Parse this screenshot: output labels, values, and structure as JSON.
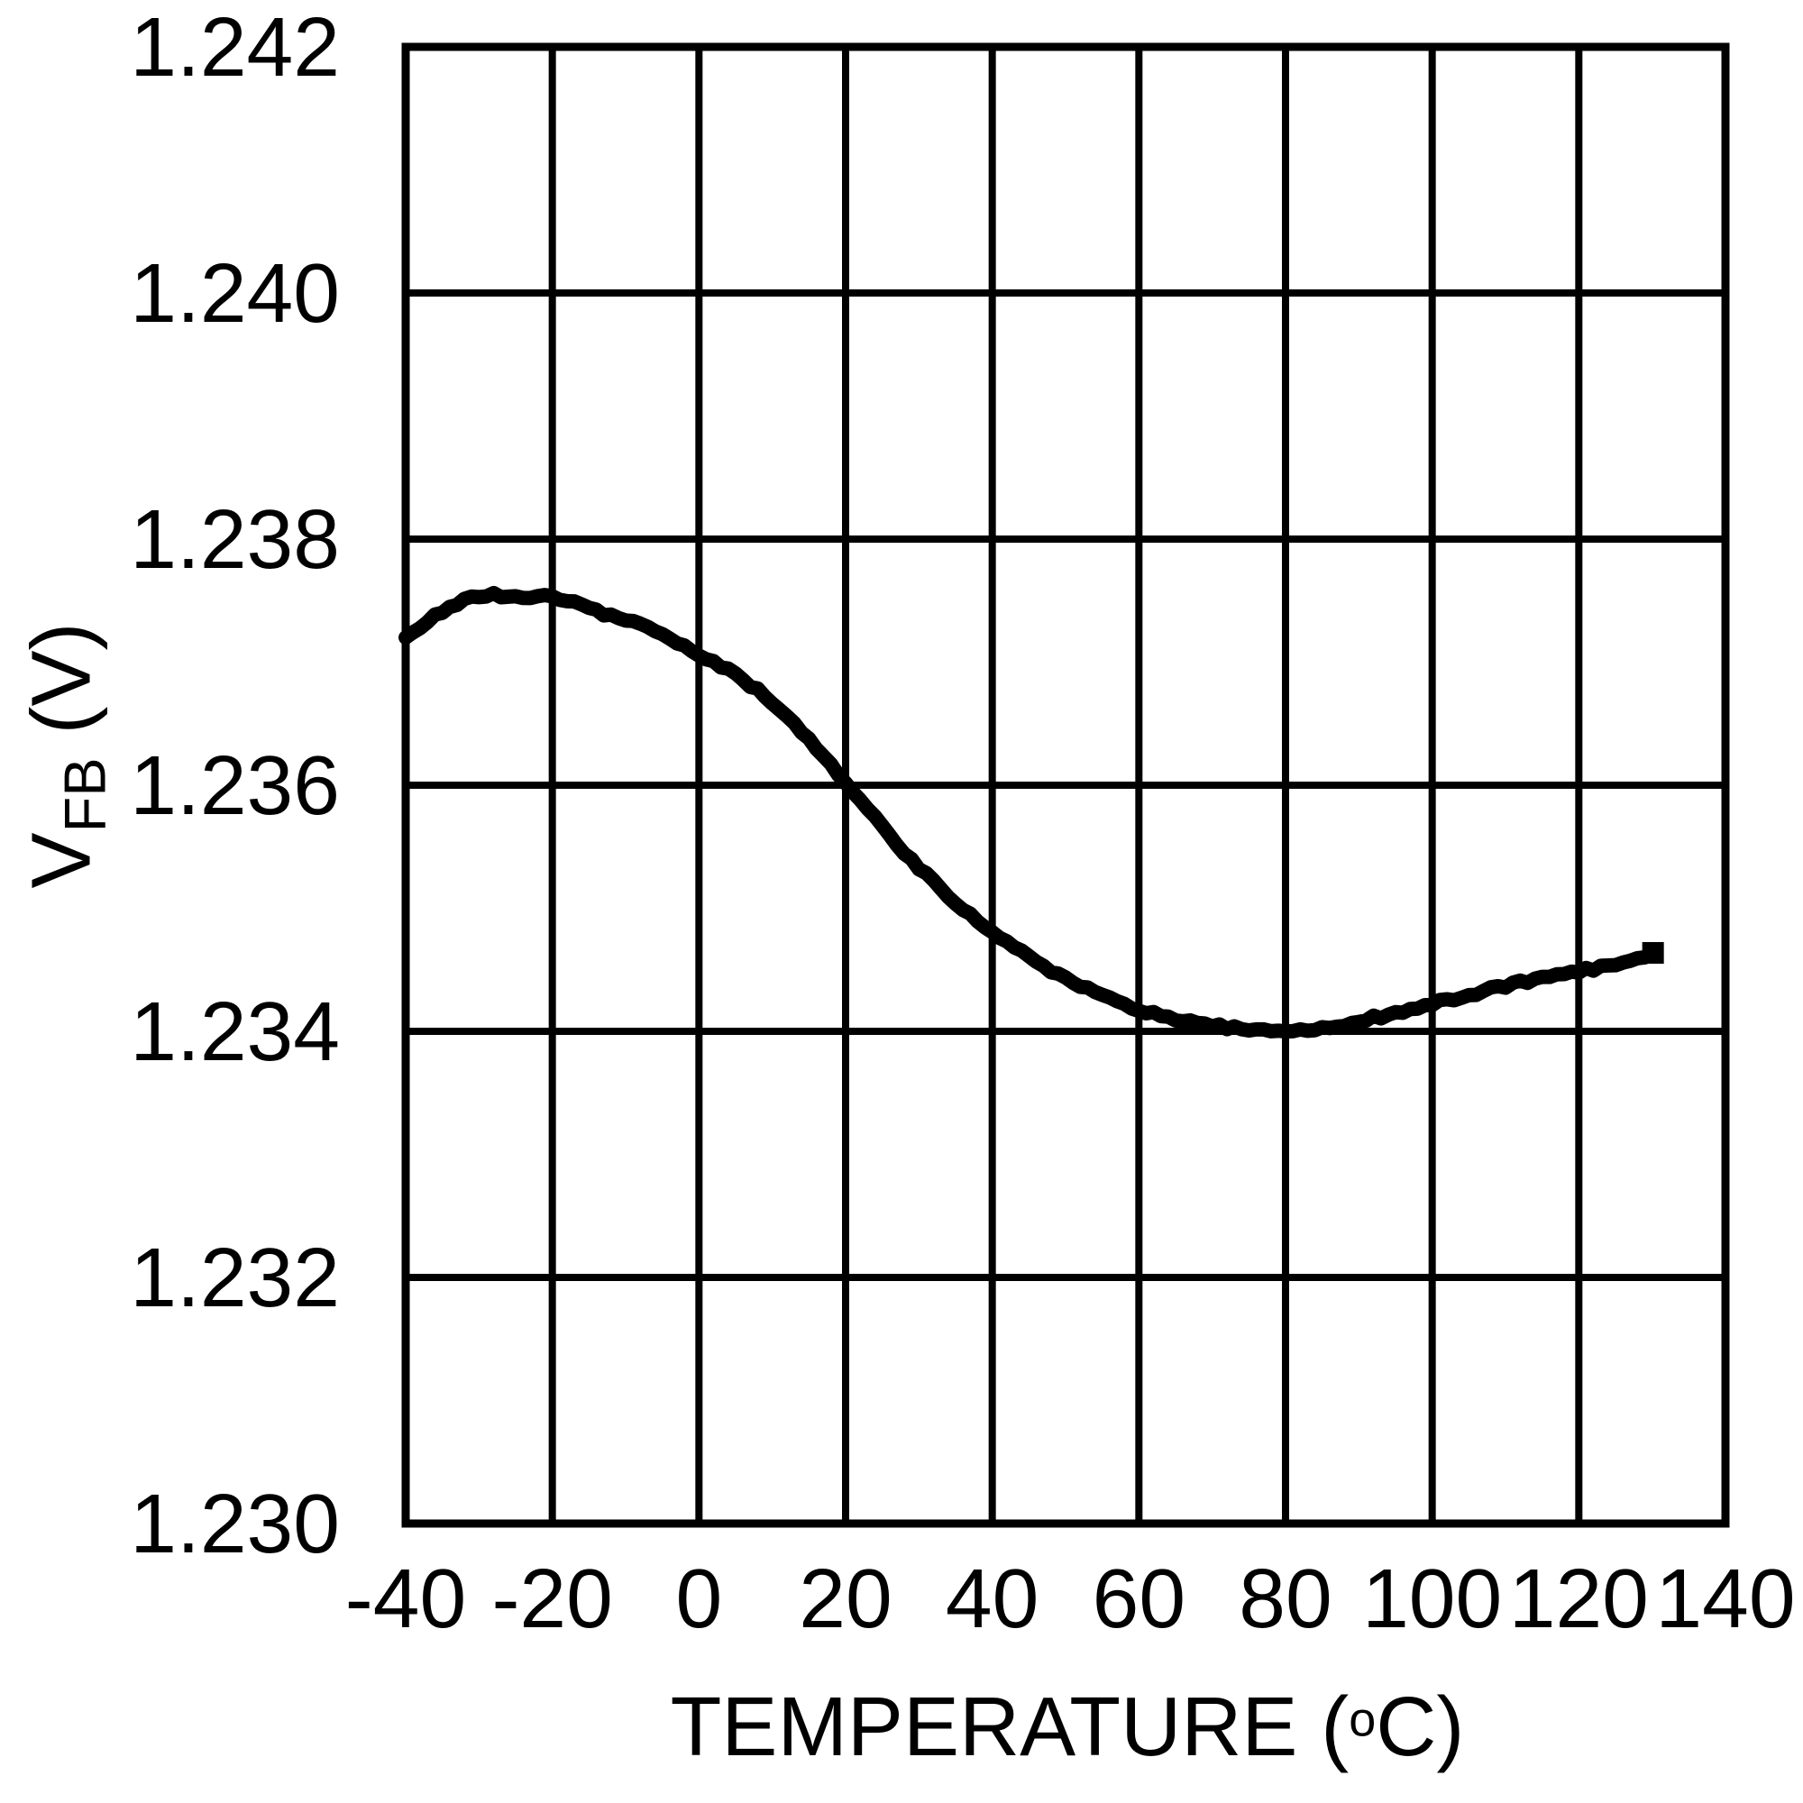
{
  "chart_data": {
    "type": "line",
    "title": "",
    "xlabel": {
      "main": "TEMPERATURE (",
      "sup": "o",
      "end": "C)"
    },
    "ylabel": {
      "main": "V",
      "sub": "FB",
      "unit": " (V)"
    },
    "xlim": [
      -40,
      140
    ],
    "ylim": [
      1.23,
      1.242
    ],
    "x_ticks": [
      -40,
      -20,
      0,
      20,
      40,
      60,
      80,
      100,
      120,
      140
    ],
    "x_tick_labels": [
      "-40",
      "-20",
      "0",
      "20",
      "40",
      "60",
      "80",
      "100",
      "120",
      "140"
    ],
    "y_ticks": [
      1.242,
      1.24,
      1.238,
      1.236,
      1.234,
      1.232,
      1.23
    ],
    "y_tick_labels": [
      "1.242",
      "1.240",
      "1.238",
      "1.236",
      "1.234",
      "1.232",
      "1.230"
    ],
    "grid": true,
    "legend": false,
    "line_color": "#000000",
    "background": "#ffffff",
    "series": [
      {
        "name": "VFB",
        "x": [
          -40,
          -37,
          -34,
          -31,
          -28,
          -25,
          -22,
          -19,
          -16,
          -13,
          -10,
          -7,
          -4,
          -1,
          2,
          5,
          8,
          11,
          14,
          17,
          20,
          23,
          26,
          29,
          32,
          35,
          38,
          41,
          44,
          47,
          50,
          53,
          56,
          59,
          62,
          65,
          68,
          71,
          74,
          77,
          80,
          83,
          86,
          89,
          92,
          95,
          98,
          101,
          104,
          107,
          110,
          113,
          116,
          119,
          122,
          125,
          128,
          130
        ],
        "y": [
          1.2372,
          1.23733,
          1.23746,
          1.23752,
          1.23755,
          1.23753,
          1.23754,
          1.23751,
          1.23748,
          1.23738,
          1.23735,
          1.23729,
          1.23718,
          1.2371,
          1.23701,
          1.2369,
          1.23677,
          1.23662,
          1.23644,
          1.23624,
          1.23603,
          1.23581,
          1.23559,
          1.23539,
          1.23521,
          1.23505,
          1.2349,
          1.23477,
          1.23464,
          1.23453,
          1.23443,
          1.23434,
          1.23427,
          1.2342,
          1.23414,
          1.2341,
          1.23406,
          1.23404,
          1.23402,
          1.23401,
          1.23401,
          1.23402,
          1.23404,
          1.23407,
          1.23411,
          1.23415,
          1.23419,
          1.23424,
          1.23428,
          1.23433,
          1.23437,
          1.23441,
          1.23444,
          1.23448,
          1.23451,
          1.23455,
          1.23458,
          1.23463
        ]
      }
    ]
  }
}
